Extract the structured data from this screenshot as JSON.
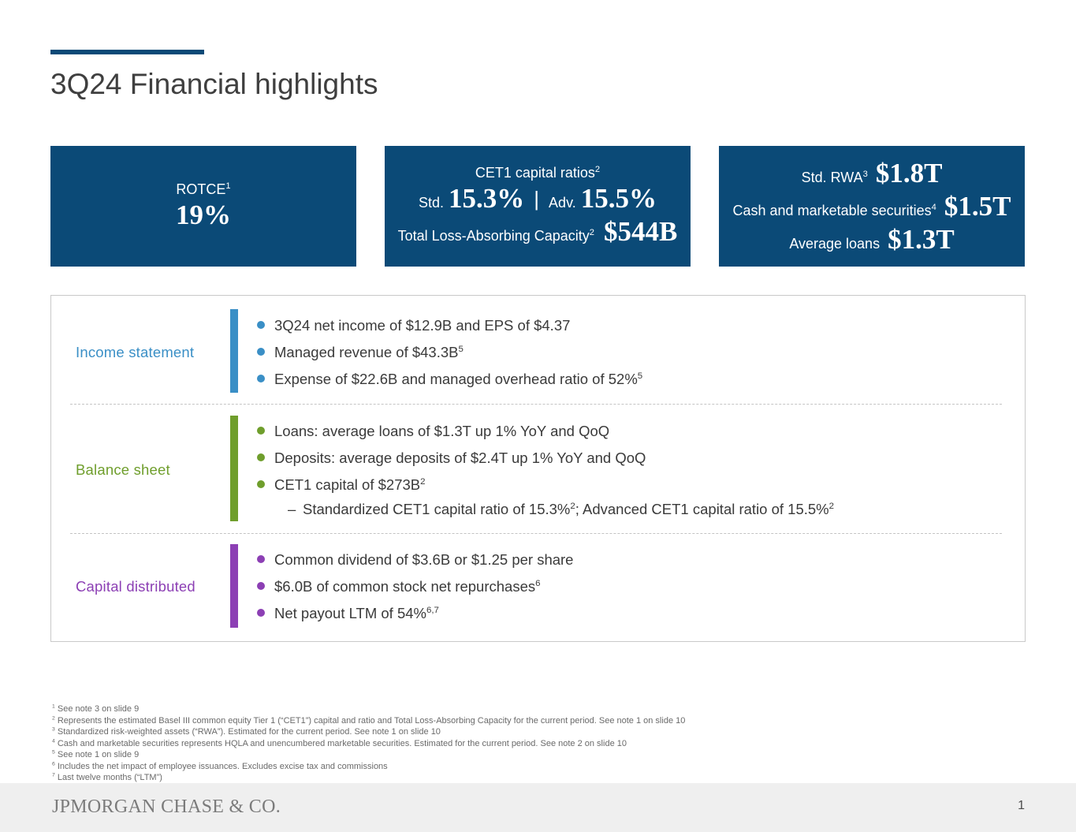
{
  "slide": {
    "title": "3Q24 Financial highlights",
    "page_number": "1"
  },
  "kpis": {
    "rotce": {
      "label": "ROTCE",
      "sup": "1",
      "value": "19%"
    },
    "cet1": {
      "label": "CET1 capital ratios",
      "label_sup": "2",
      "std_label": "Std.",
      "std_value": "15.3%",
      "divider": "|",
      "adv_label": "Adv.",
      "adv_value": "15.5%",
      "tlac_label": "Total Loss-Absorbing Capacity",
      "tlac_sup": "2",
      "tlac_value": "$544B"
    },
    "balance": {
      "rwa_label": "Std. RWA",
      "rwa_sup": "3",
      "rwa_value": "$1.8T",
      "cash_label": "Cash and marketable securities",
      "cash_sup": "4",
      "cash_value": "$1.5T",
      "loans_label": "Average loans",
      "loans_value": "$1.3T"
    }
  },
  "sections": {
    "income": {
      "label": "Income statement",
      "color": "#3a8fc6",
      "b1": "3Q24 net income of $12.9B and EPS of $4.37",
      "b2": "Managed revenue of $43.3B",
      "b2_sup": "5",
      "b3": "Expense of $22.6B and managed overhead ratio of 52%",
      "b3_sup": "5"
    },
    "balance": {
      "label": "Balance sheet",
      "color": "#6f9e2c",
      "b1": "Loans: average loans of $1.3T up 1% YoY and QoQ",
      "b2": "Deposits: average deposits of $2.4T up 1% YoY and QoQ",
      "b3": "CET1 capital of $273B",
      "b3_sup": "2",
      "sub_dash": "–",
      "sub_a": "Standardized CET1 capital ratio of 15.3%",
      "sub_a_sup": "2",
      "sub_b": "; Advanced CET1 capital ratio of 15.5%",
      "sub_b_sup": "2"
    },
    "capital": {
      "label": "Capital distributed",
      "color": "#8c3fb4",
      "b1": "Common dividend of $3.6B or $1.25 per share",
      "b2": "$6.0B of common stock net repurchases",
      "b2_sup": "6",
      "b3": "Net payout LTM of 54%",
      "b3_sup": "6,7"
    }
  },
  "footnotes": [
    {
      "num": "1",
      "text": "See note 3 on slide 9"
    },
    {
      "num": "2",
      "text": "Represents the estimated Basel III common equity Tier 1 (“CET1”) capital and ratio and Total Loss-Absorbing Capacity for the current period. See note 1 on slide 10"
    },
    {
      "num": "3",
      "text": "Standardized risk-weighted assets (“RWA”). Estimated for the current period. See note 1 on slide 10"
    },
    {
      "num": "4",
      "text": "Cash and marketable securities represents HQLA and unencumbered marketable securities. Estimated for the current period. See note 2 on slide 10"
    },
    {
      "num": "5",
      "text": "See note 1 on slide 9"
    },
    {
      "num": "6",
      "text": "Includes the net impact of employee issuances. Excludes excise tax and commissions"
    },
    {
      "num": "7",
      "text": "Last twelve months (“LTM”)"
    }
  ],
  "footer": {
    "logo": "JPMORGAN CHASE & CO."
  },
  "colors": {
    "brand_navy": "#0b4a77"
  }
}
